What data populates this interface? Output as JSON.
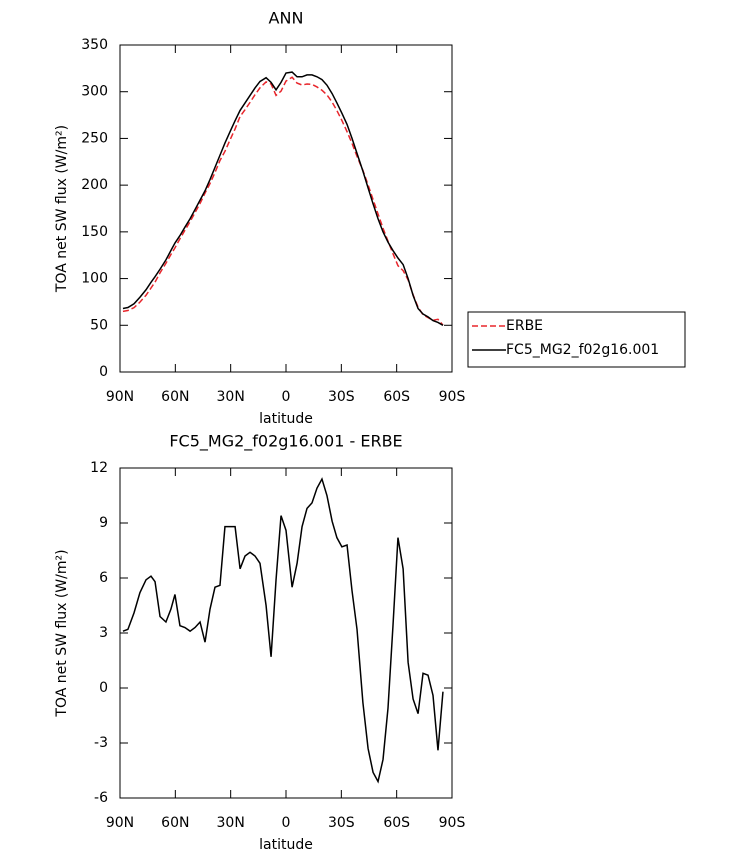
{
  "chart_data": [
    {
      "type": "line",
      "title": "ANN",
      "x_label": "latitude",
      "y_label": "TOA net SW flux (W/m²)",
      "x": [
        88.4,
        85.7,
        82.4,
        79.2,
        75.9,
        73.2,
        71.0,
        68.3,
        65.1,
        62.4,
        60.2,
        57.5,
        54.8,
        52.0,
        49.3,
        46.6,
        43.9,
        41.2,
        38.5,
        35.8,
        33.1,
        30.4,
        27.6,
        24.9,
        22.2,
        19.5,
        16.8,
        14.1,
        10.8,
        8.1,
        5.4,
        2.7,
        0,
        -3.3,
        -6.0,
        -8.7,
        -11.4,
        -14.1,
        -16.8,
        -19.5,
        -22.2,
        -25.0,
        -27.6,
        -30.3,
        -33.1,
        -35.8,
        -38.5,
        -41.7,
        -44.5,
        -47.2,
        -49.9,
        -52.6,
        -55.3,
        -58.0,
        -60.7,
        -63.5,
        -66.2,
        -68.9,
        -71.6,
        -74.3,
        -77.0,
        -79.7,
        -82.4,
        -85.1
      ],
      "series": [
        {
          "name": "ERBE",
          "color": "#e8262c",
          "style": "dashed",
          "values": [
            64.9,
            65.8,
            68.9,
            74.8,
            82.1,
            89.9,
            96.2,
            106.1,
            116.4,
            125.7,
            132.9,
            142.6,
            151.7,
            160.9,
            170.7,
            180.4,
            191.5,
            201.7,
            213.5,
            226.4,
            236.2,
            248.2,
            260.2,
            273.5,
            280.8,
            288.6,
            296.8,
            304.2,
            310.5,
            308.3,
            296.1,
            300.6,
            311.4,
            315.5,
            309.2,
            307.2,
            308.2,
            307.9,
            305.1,
            301.6,
            296.5,
            288.9,
            279.8,
            269.3,
            257.2,
            244.7,
            230.8,
            215.8,
            200.3,
            184.6,
            169.1,
            153.9,
            140.1,
            126.6,
            113.8,
            108.5,
            98.6,
            82.6,
            69.4,
            61.2,
            58.3,
            55.4,
            56.4,
            50.2
          ]
        },
        {
          "name": "FC5_MG2_f02g16.001",
          "color": "#000000",
          "style": "solid",
          "values": [
            68,
            69,
            73,
            80,
            88,
            96,
            102,
            110,
            120,
            130,
            138,
            146,
            155,
            164,
            174,
            184,
            194,
            206,
            219,
            232,
            245,
            257,
            269,
            280,
            288,
            296,
            304,
            311,
            315,
            310,
            302,
            310,
            320,
            321,
            316,
            316,
            318,
            318,
            316,
            313,
            307,
            298,
            288,
            277,
            265,
            250,
            234,
            215,
            197,
            180,
            164,
            150,
            139,
            130,
            122,
            115,
            100,
            82,
            68,
            62,
            59,
            55,
            53,
            50
          ]
        }
      ],
      "xlim": [
        90,
        -90
      ],
      "xticks": [
        {
          "value": 90,
          "label": "90N"
        },
        {
          "value": 60,
          "label": "60N"
        },
        {
          "value": 30,
          "label": "30N"
        },
        0,
        {
          "value": -30,
          "label": "30S"
        },
        {
          "value": -60,
          "label": "60S"
        },
        {
          "value": -90,
          "label": "90S"
        }
      ],
      "ylim": [
        0,
        350
      ],
      "yticks": [
        0,
        50,
        100,
        150,
        200,
        250,
        300,
        350
      ],
      "legend": "outside-right"
    },
    {
      "type": "line",
      "title": "FC5_MG2_f02g16.001 - ERBE",
      "x_label": "latitude",
      "y_label": "TOA net SW flux (W/m²)",
      "x": [
        88.4,
        85.7,
        82.4,
        79.2,
        75.9,
        73.2,
        71.0,
        68.3,
        65.1,
        62.4,
        60.2,
        57.5,
        54.8,
        52.0,
        49.3,
        46.6,
        43.9,
        41.2,
        38.5,
        35.8,
        33.1,
        30.4,
        27.6,
        24.9,
        22.2,
        19.5,
        16.8,
        14.1,
        10.8,
        8.1,
        5.4,
        2.7,
        0,
        -3.3,
        -6.0,
        -8.7,
        -11.4,
        -14.1,
        -16.8,
        -19.5,
        -22.2,
        -25.0,
        -27.6,
        -30.3,
        -33.1,
        -35.8,
        -38.5,
        -41.7,
        -44.5,
        -47.2,
        -49.9,
        -52.6,
        -55.3,
        -58.0,
        -60.7,
        -63.5,
        -66.2,
        -68.9,
        -71.6,
        -74.3,
        -77.0,
        -79.7,
        -82.4,
        -85.1
      ],
      "color": "#000000",
      "values": [
        3.1,
        3.2,
        4.1,
        5.2,
        5.9,
        6.1,
        5.8,
        3.9,
        3.6,
        4.3,
        5.1,
        3.4,
        3.3,
        3.1,
        3.3,
        3.6,
        2.5,
        4.3,
        5.5,
        5.6,
        8.8,
        8.8,
        8.8,
        6.5,
        7.2,
        7.4,
        7.2,
        6.8,
        4.5,
        1.7,
        5.9,
        9.4,
        8.6,
        5.5,
        6.8,
        8.8,
        9.8,
        10.1,
        10.9,
        11.4,
        10.5,
        9.1,
        8.2,
        7.7,
        7.8,
        5.3,
        3.2,
        -0.8,
        -3.3,
        -4.6,
        -5.1,
        -3.9,
        -1.1,
        3.4,
        8.2,
        6.5,
        1.4,
        -0.6,
        -1.4,
        0.8,
        0.7,
        -0.4,
        -3.4,
        -0.2
      ],
      "xlim": [
        90,
        -90
      ],
      "xticks": [
        {
          "value": 90,
          "label": "90N"
        },
        {
          "value": 60,
          "label": "60N"
        },
        {
          "value": 30,
          "label": "30N"
        },
        0,
        {
          "value": -30,
          "label": "30S"
        },
        {
          "value": -60,
          "label": "60S"
        },
        {
          "value": -90,
          "label": "90S"
        }
      ],
      "ylim": [
        -6,
        12
      ],
      "yticks": [
        -6,
        -3,
        0,
        3,
        6,
        9,
        12
      ]
    }
  ]
}
